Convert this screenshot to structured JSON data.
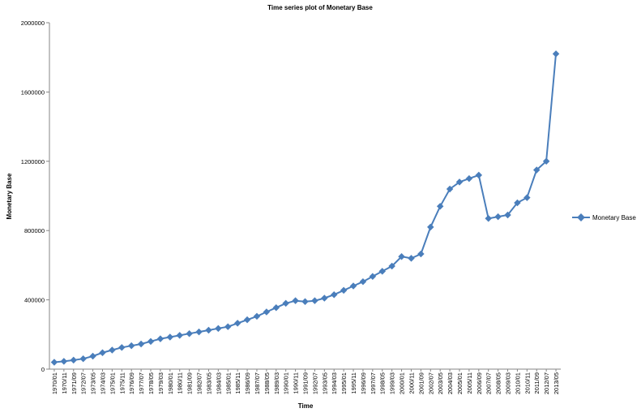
{
  "chart_data": {
    "type": "line",
    "title": "Time series plot of Monetary Base",
    "xlabel": "Time",
    "ylabel": "Monetary Base",
    "ylim": [
      0,
      2000000
    ],
    "y_ticks": [
      0,
      400000,
      800000,
      1200000,
      1600000,
      2000000
    ],
    "y_tick_labels": [
      "0",
      "400000",
      "800000",
      "1200000",
      "1600000",
      "2000000"
    ],
    "grid": false,
    "legend_position": "right",
    "x_tick_labels": [
      "1970/01",
      "1970/11",
      "1971/09",
      "1972/07",
      "1973/05",
      "1974/03",
      "1975/01",
      "1975/11",
      "1976/09",
      "1977/07",
      "1978/05",
      "1979/03",
      "1980/01",
      "1980/11",
      "1981/09",
      "1982/07",
      "1983/05",
      "1984/03",
      "1985/01",
      "1985/11",
      "1986/09",
      "1987/07",
      "1988/05",
      "1989/03",
      "1990/01",
      "1990/11",
      "1991/09",
      "1992/07",
      "1993/05",
      "1994/03",
      "1995/01",
      "1995/11",
      "1996/09",
      "1997/07",
      "1998/05",
      "1999/03",
      "2000/01",
      "2000/11",
      "2001/09",
      "2002/07",
      "2003/05",
      "2004/03",
      "2005/01",
      "2005/11",
      "2006/09",
      "2007/07",
      "2008/05",
      "2009/03",
      "2010/01",
      "2010/11",
      "2011/09",
      "2012/07",
      "2013/05"
    ],
    "series": [
      {
        "name": "Monetary Base",
        "color": "#4a7ebb",
        "x": [
          "1970/01",
          "1970/11",
          "1971/09",
          "1972/07",
          "1973/05",
          "1974/03",
          "1975/01",
          "1975/11",
          "1976/09",
          "1977/07",
          "1978/05",
          "1979/03",
          "1980/01",
          "1980/11",
          "1981/09",
          "1982/07",
          "1983/05",
          "1984/03",
          "1985/01",
          "1985/11",
          "1986/09",
          "1987/07",
          "1988/05",
          "1989/03",
          "1990/01",
          "1990/11",
          "1991/09",
          "1992/07",
          "1993/05",
          "1994/03",
          "1995/01",
          "1995/11",
          "1996/09",
          "1997/07",
          "1998/05",
          "1999/03",
          "2000/01",
          "2000/11",
          "2001/09",
          "2002/07",
          "2003/05",
          "2004/03",
          "2005/01",
          "2005/11",
          "2006/09",
          "2007/07",
          "2008/05",
          "2009/03",
          "2010/01",
          "2010/11",
          "2011/09",
          "2012/07",
          "2013/05"
        ],
        "values": [
          40000,
          45000,
          52000,
          60000,
          75000,
          95000,
          110000,
          125000,
          135000,
          145000,
          160000,
          175000,
          185000,
          195000,
          205000,
          215000,
          225000,
          235000,
          245000,
          265000,
          285000,
          305000,
          330000,
          355000,
          380000,
          395000,
          390000,
          395000,
          410000,
          430000,
          455000,
          480000,
          505000,
          535000,
          565000,
          595000,
          650000,
          640000,
          665000,
          820000,
          940000,
          1040000,
          1080000,
          1100000,
          1120000,
          870000,
          880000,
          890000,
          960000,
          990000,
          1150000,
          1200000,
          1820000
        ]
      }
    ]
  }
}
